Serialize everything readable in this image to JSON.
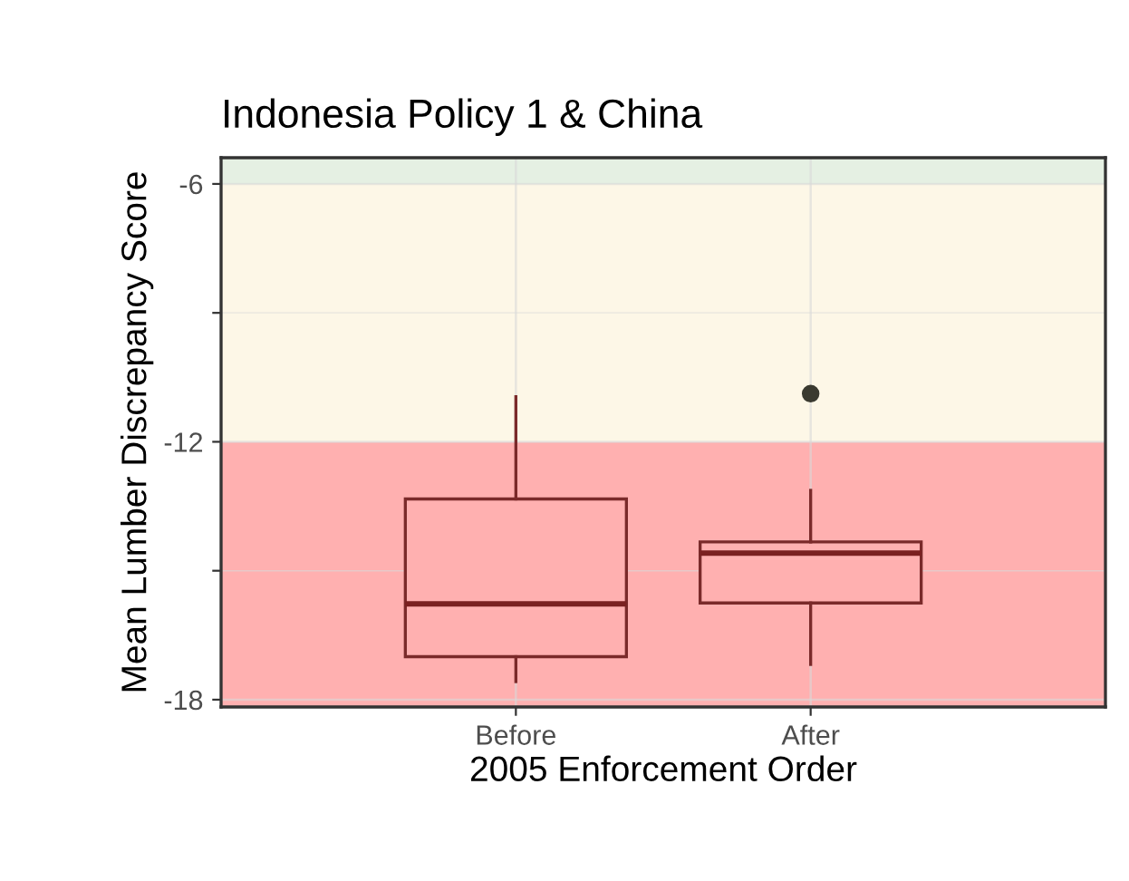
{
  "chart_data": {
    "type": "box",
    "title": "Indonesia Policy 1 & China",
    "xlabel": "2005 Enforcement Order",
    "ylabel": "Mean Lumber Discrepancy Score",
    "categories": [
      "Before",
      "After"
    ],
    "series": [
      {
        "color": "#ffb0b0",
        "boxes": [
          {
            "low": -17.58,
            "q1": -17.0,
            "median": -15.77,
            "q3": -13.33,
            "high": -10.95
          },
          {
            "low": -17.18,
            "q1": -15.75,
            "median": -14.59,
            "q3": -14.33,
            "high": -13.13,
            "outliers": [
              -10.88
            ]
          }
        ]
      }
    ],
    "ylim": [
      -18.17,
      -5.39
    ],
    "yticks": [
      -6,
      {
        "value": -9,
        "label": null
      },
      -12,
      {
        "value": -15,
        "label": null
      },
      -18
    ],
    "grid": true,
    "bands": [
      {
        "axis": "y",
        "from": -18.17,
        "to": -12,
        "color": "#ffb0b0"
      },
      {
        "axis": "y",
        "from": -12,
        "to": -6,
        "color": "#fdf7e7"
      },
      {
        "axis": "y",
        "from": -6,
        "to": -5.39,
        "color": "#e5f0e3"
      }
    ]
  }
}
